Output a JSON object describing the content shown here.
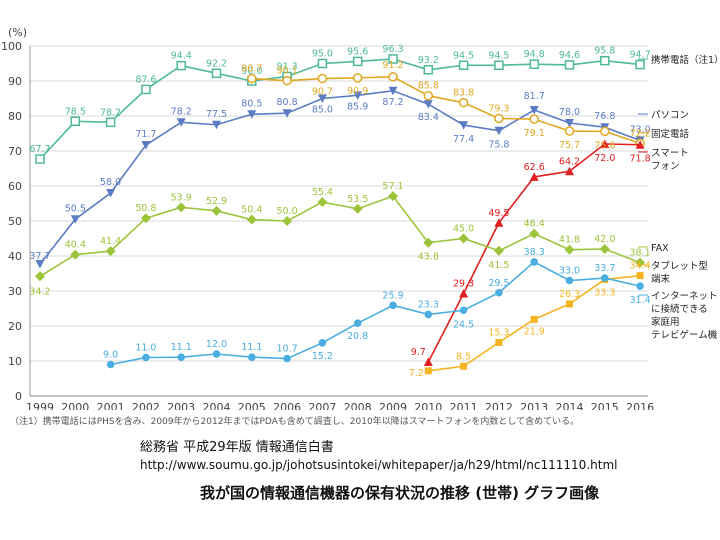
{
  "chart_data": {
    "type": "line",
    "ylabel": "(%)",
    "ylim": [
      0,
      100
    ],
    "yticks": [
      0,
      10,
      20,
      30,
      40,
      50,
      60,
      70,
      80,
      90,
      100
    ],
    "x": [
      "1999",
      "2000",
      "2001",
      "2002",
      "2003",
      "2004",
      "2005",
      "2006",
      "2007",
      "2008",
      "2009",
      "2010",
      "2011",
      "2012",
      "2013",
      "2014",
      "2015",
      "2016"
    ],
    "grid": "horizontal",
    "legend_placement": "right",
    "series": [
      {
        "name": "携帯電話（注1）",
        "color": "#4fb89b",
        "marker": "square-open",
        "values": [
          67.7,
          78.5,
          78.2,
          87.6,
          94.4,
          92.2,
          90.0,
          91.3,
          95.0,
          95.6,
          96.3,
          93.2,
          94.5,
          94.5,
          94.8,
          94.6,
          95.8,
          94.7
        ]
      },
      {
        "name": "パソコン",
        "color": "#5b7cc4",
        "marker": "triangle-down",
        "values": [
          37.7,
          50.5,
          58.0,
          71.7,
          78.2,
          77.5,
          80.5,
          80.8,
          85.0,
          85.9,
          87.2,
          83.4,
          77.4,
          75.8,
          81.7,
          78.0,
          76.8,
          73.0
        ]
      },
      {
        "name": "固定電話",
        "color": "#e0a820",
        "marker": "circle-open",
        "values": [
          null,
          null,
          null,
          null,
          null,
          null,
          90.7,
          90.1,
          90.7,
          90.9,
          91.2,
          85.8,
          83.8,
          79.3,
          79.1,
          75.7,
          75.6,
          72.2
        ]
      },
      {
        "name": "スマートフォン",
        "color": "#e02020",
        "marker": "triangle-up",
        "values": [
          null,
          null,
          null,
          null,
          null,
          null,
          null,
          null,
          null,
          null,
          null,
          9.7,
          29.3,
          49.5,
          62.6,
          64.2,
          72.0,
          71.8
        ]
      },
      {
        "name": "FAX",
        "color": "#9cc43a",
        "marker": "diamond",
        "values": [
          34.2,
          40.4,
          41.4,
          50.8,
          53.9,
          52.9,
          50.4,
          50.0,
          55.4,
          53.5,
          57.1,
          43.8,
          45.0,
          41.5,
          46.4,
          41.8,
          42.0,
          38.1
        ]
      },
      {
        "name": "タブレット型端末",
        "color": "#f5b320",
        "marker": "square",
        "values": [
          null,
          null,
          null,
          null,
          null,
          null,
          null,
          null,
          null,
          null,
          null,
          7.2,
          8.5,
          15.3,
          21.9,
          26.3,
          33.3,
          34.4
        ]
      },
      {
        "name": "インターネットに接続できる家庭用テレビゲーム機",
        "color": "#4aaee0",
        "marker": "circle",
        "values": [
          null,
          null,
          9.0,
          11.0,
          11.1,
          12.0,
          11.1,
          10.7,
          15.2,
          20.8,
          25.9,
          23.3,
          24.5,
          29.5,
          38.3,
          33.0,
          33.7,
          31.4
        ]
      }
    ],
    "legend": [
      {
        "label": "携帯電話（注1）",
        "color": "#4fb89b",
        "marker": "square-open",
        "value": 94.7
      },
      {
        "label": "パソコン",
        "color": "#5b7cc4",
        "marker": "triangle-down",
        "value": 73.0
      },
      {
        "label": "固定電話",
        "color": "#e0a820",
        "marker": "circle-open",
        "value": 72.2
      },
      {
        "label": "スマート",
        "color": "#e02020",
        "marker": "triangle-up",
        "value": null
      },
      {
        "label": "フォン",
        "color": null,
        "marker": null,
        "value": null
      },
      {
        "label": "FAX",
        "color": "#9cc43a",
        "marker": "diamond",
        "value": 38.1
      },
      {
        "label": "タブレット型",
        "color": "#f5b320",
        "marker": "square",
        "value": null
      },
      {
        "label": "端末",
        "color": null,
        "marker": null,
        "value": null
      },
      {
        "label": "インターネット",
        "color": "#4aaee0",
        "marker": "circle",
        "value": null
      },
      {
        "label": "に接続できる",
        "color": null,
        "marker": null,
        "value": null
      },
      {
        "label": "家庭用",
        "color": null,
        "marker": null,
        "value": null
      },
      {
        "label": "テレビゲーム機",
        "color": null,
        "marker": null,
        "value": null
      }
    ]
  },
  "footnote": "（注1）携帯電話にはPHSを含み、2009年から2012年まではPDAも含めて調査し、2010年以降はスマートフォンを内数として含めている。",
  "source": "総務省 平成29年版 情報通信白書",
  "url": "http://www.soumu.go.jp/johotsusintokei/whitepaper/ja/h29/html/nc111110.html",
  "caption": "我が国の情報通信機器の保有状況の推移 (世帯) グラフ画像"
}
